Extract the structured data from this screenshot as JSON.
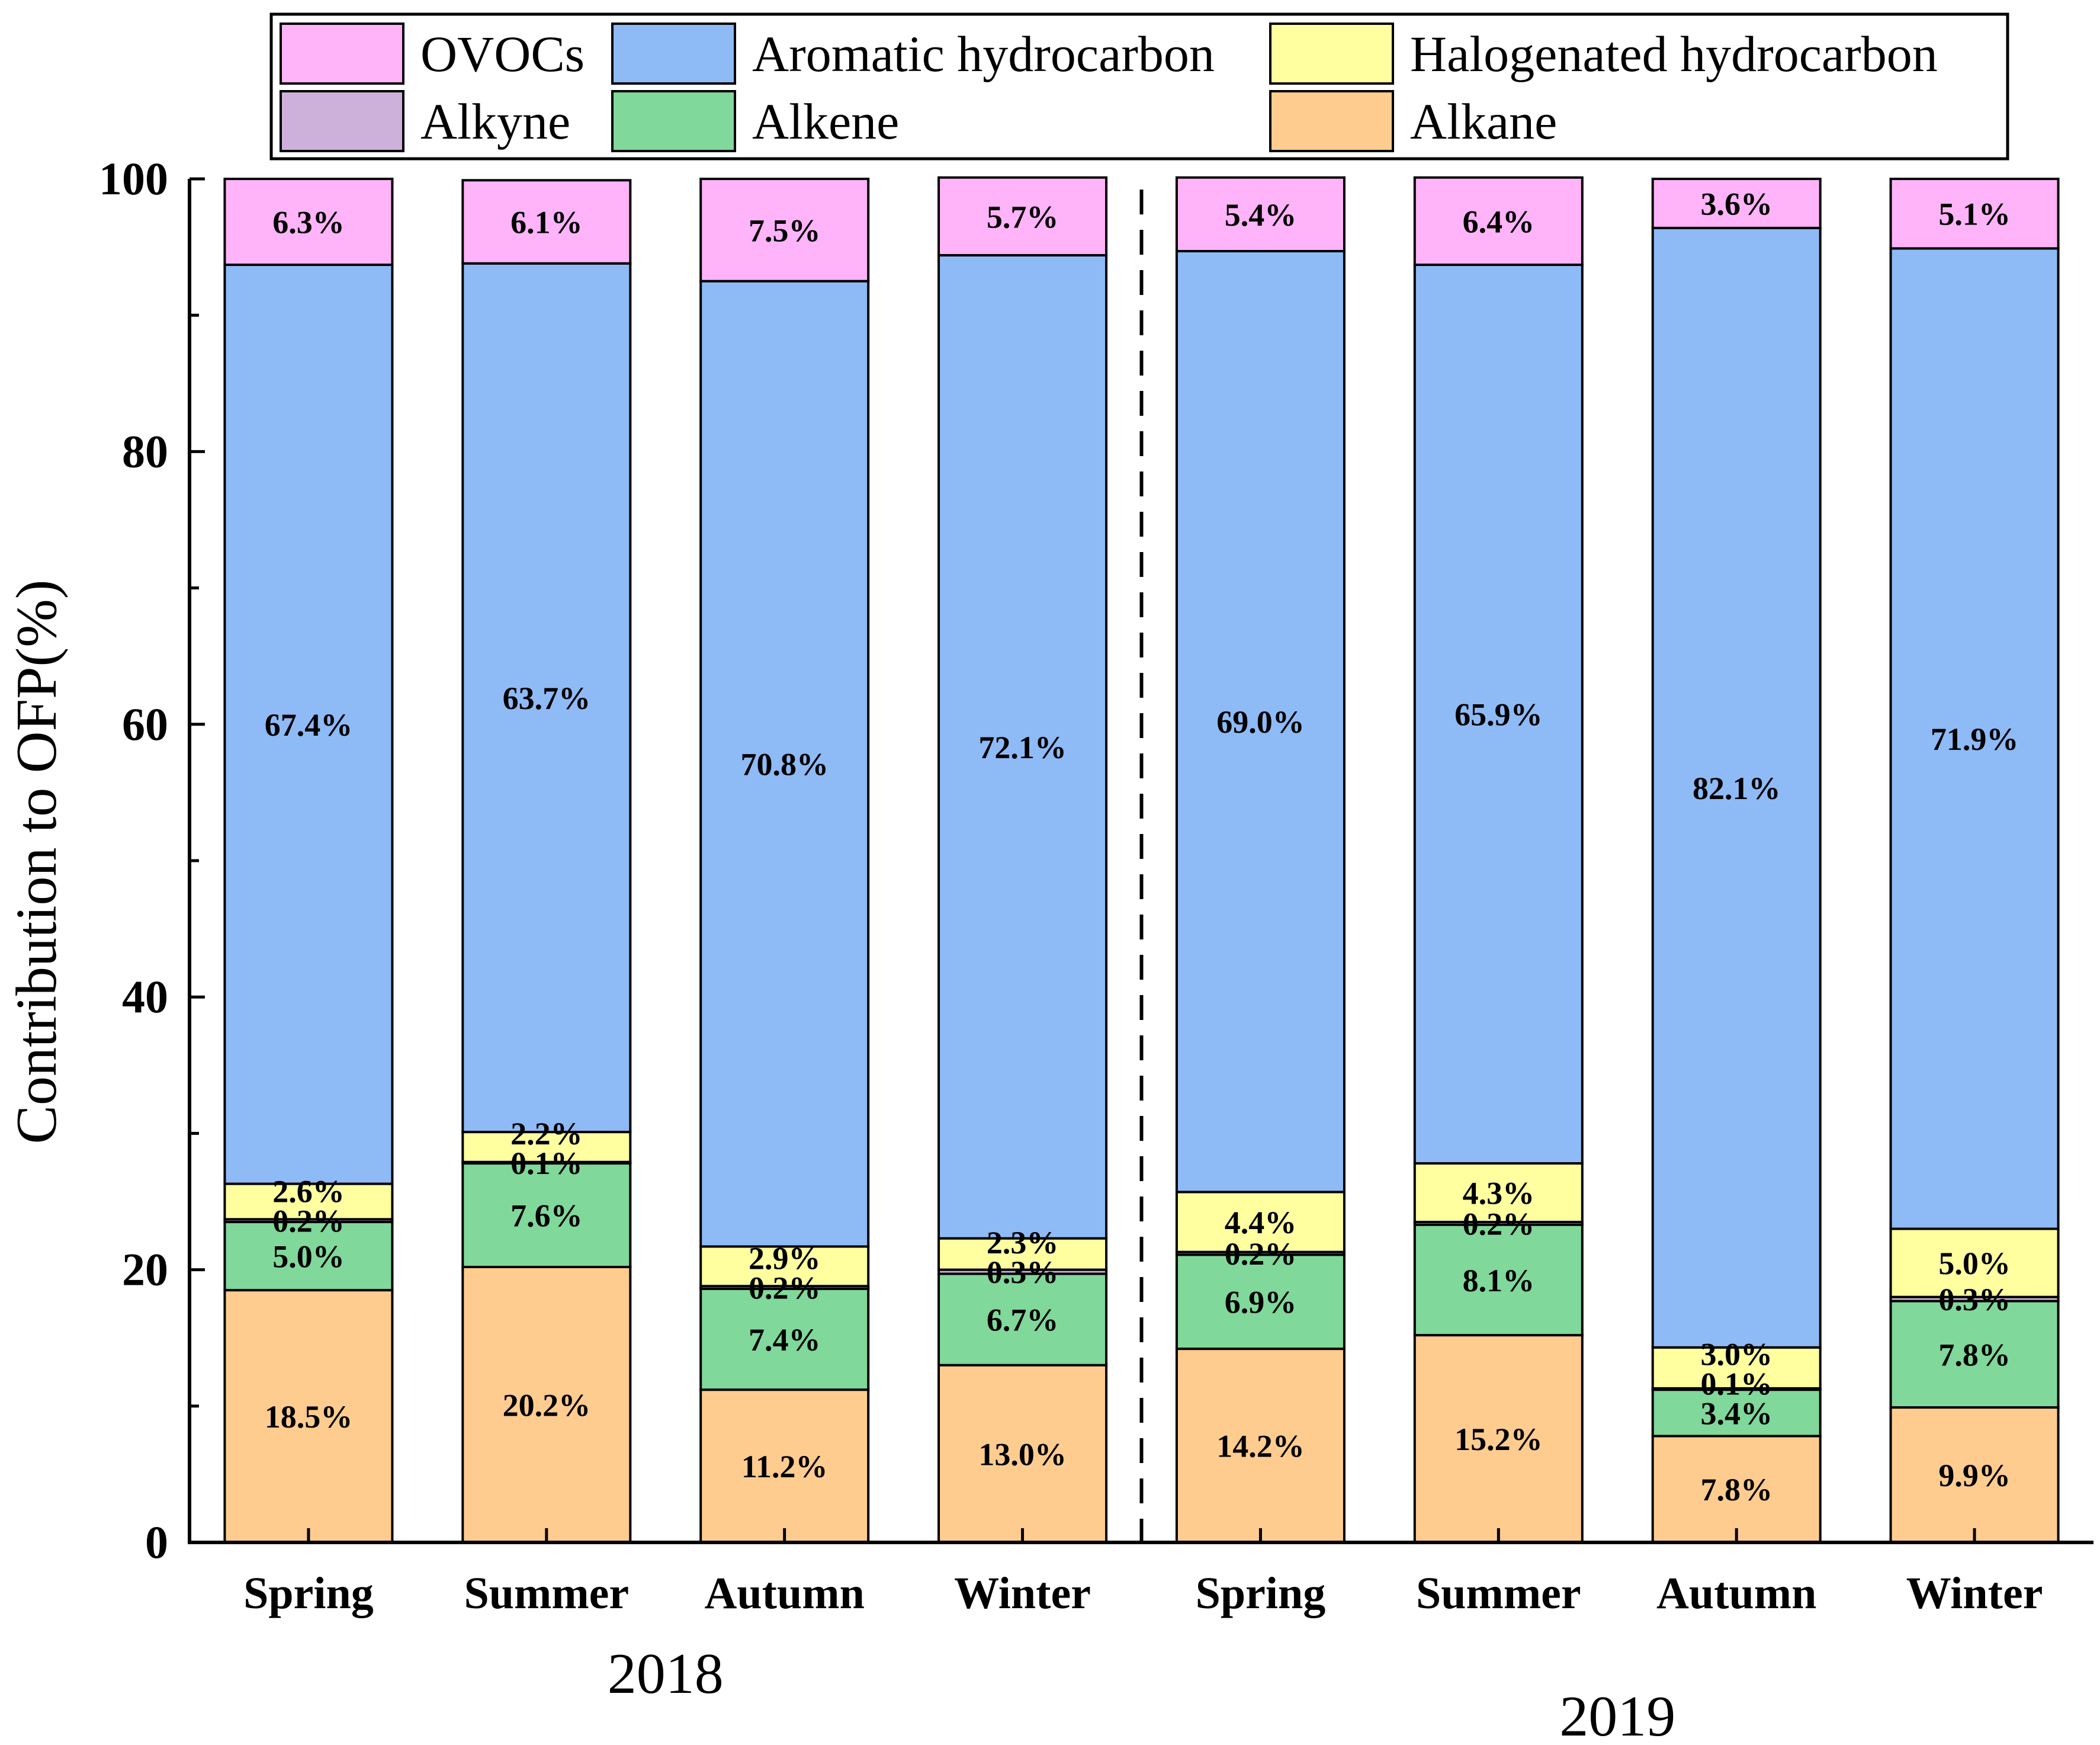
{
  "chart_data": {
    "type": "bar",
    "stacked": true,
    "ylabel": "Contribution to OFP(%)",
    "ylim": [
      0,
      100
    ],
    "yticks": [
      0,
      20,
      40,
      60,
      80,
      100
    ],
    "categories": [
      "Spring",
      "Summer",
      "Autumn",
      "Winter",
      "Spring",
      "Summer",
      "Autumn",
      "Winter"
    ],
    "groups": [
      {
        "label": "2018",
        "categories": [
          0,
          1,
          2,
          3
        ]
      },
      {
        "label": "2019",
        "categories": [
          4,
          5,
          6,
          7
        ]
      }
    ],
    "legend_position": "top",
    "series": [
      {
        "name": "Alkane",
        "color": "#FFCC8F",
        "values": [
          18.5,
          20.2,
          11.2,
          13.0,
          14.2,
          15.2,
          7.8,
          9.9
        ],
        "labels": [
          "18.5%",
          "20.2%",
          "11.2%",
          "13.0%",
          "14.2%",
          "15.2%",
          "7.8%",
          "9.9%"
        ]
      },
      {
        "name": "Alkene",
        "color": "#80D89A",
        "values": [
          5.0,
          7.6,
          7.4,
          6.7,
          6.9,
          8.1,
          3.4,
          7.8
        ],
        "labels": [
          "5.0%",
          "7.6%",
          "7.4%",
          "6.7%",
          "6.9%",
          "8.1%",
          "3.4%",
          "7.8%"
        ]
      },
      {
        "name": "Alkyne",
        "color": "#CDB1DB",
        "values": [
          0.2,
          0.1,
          0.2,
          0.3,
          0.2,
          0.2,
          0.1,
          0.3
        ],
        "labels": [
          "0.2%",
          "0.1%",
          "0.2%",
          "0.3%",
          "0.2%",
          "0.2%",
          "0.1%",
          "0.3%"
        ]
      },
      {
        "name": "Halogenated hydrocarbon",
        "color": "#FFFFA0",
        "values": [
          2.6,
          2.2,
          2.9,
          2.3,
          4.4,
          4.3,
          3.0,
          5.0
        ],
        "labels": [
          "2.6%",
          "2.2%",
          "2.9%",
          "2.3%",
          "4.4%",
          "4.3%",
          "3.0%",
          "5.0%"
        ]
      },
      {
        "name": "Aromatic hydrocarbon",
        "color": "#8EBAF6",
        "values": [
          67.4,
          63.7,
          70.8,
          72.1,
          69.0,
          65.9,
          82.1,
          71.9
        ],
        "labels": [
          "67.4%",
          "63.7%",
          "70.8%",
          "72.1%",
          "69.0%",
          "65.9%",
          "82.1%",
          "71.9%"
        ]
      },
      {
        "name": "OVOCs",
        "color": "#FFB3F8",
        "values": [
          6.3,
          6.1,
          7.5,
          5.7,
          5.4,
          6.4,
          3.6,
          5.1
        ],
        "labels": [
          "6.3%",
          "6.1%",
          "7.5%",
          "5.7%",
          "5.4%",
          "6.4%",
          "3.6%",
          "5.1%"
        ]
      }
    ],
    "legend_order": [
      "OVOCs",
      "Aromatic hydrocarbon",
      "Halogenated hydrocarbon",
      "Alkyne",
      "Alkene",
      "Alkane"
    ]
  }
}
